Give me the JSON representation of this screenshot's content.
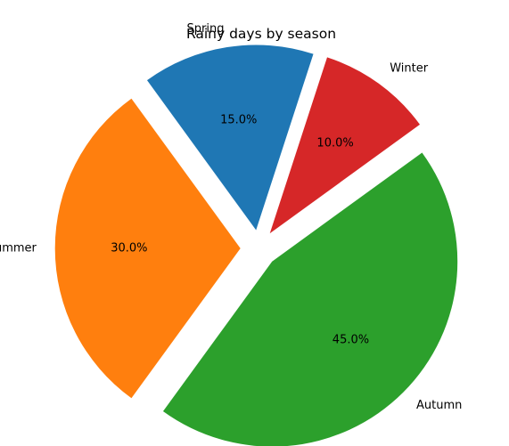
{
  "chart_data": {
    "type": "pie",
    "title": "Rainy days by season",
    "slices": [
      {
        "label": "Spring",
        "value": 15,
        "pct_label": "15.0%",
        "color": "#1f77b4",
        "explode": 0.1
      },
      {
        "label": "Summer",
        "value": 30,
        "pct_label": "30.0%",
        "color": "#ff7f0e",
        "explode": 0.1
      },
      {
        "label": "Autumn",
        "value": 45,
        "pct_label": "45.0%",
        "color": "#2ca02c",
        "explode": 0.1
      },
      {
        "label": "Winter",
        "value": 10,
        "pct_label": "10.0%",
        "color": "#d62728",
        "explode": 0.1
      }
    ],
    "start_angle_deg": 72,
    "direction": "counterclockwise",
    "legend": "none"
  }
}
